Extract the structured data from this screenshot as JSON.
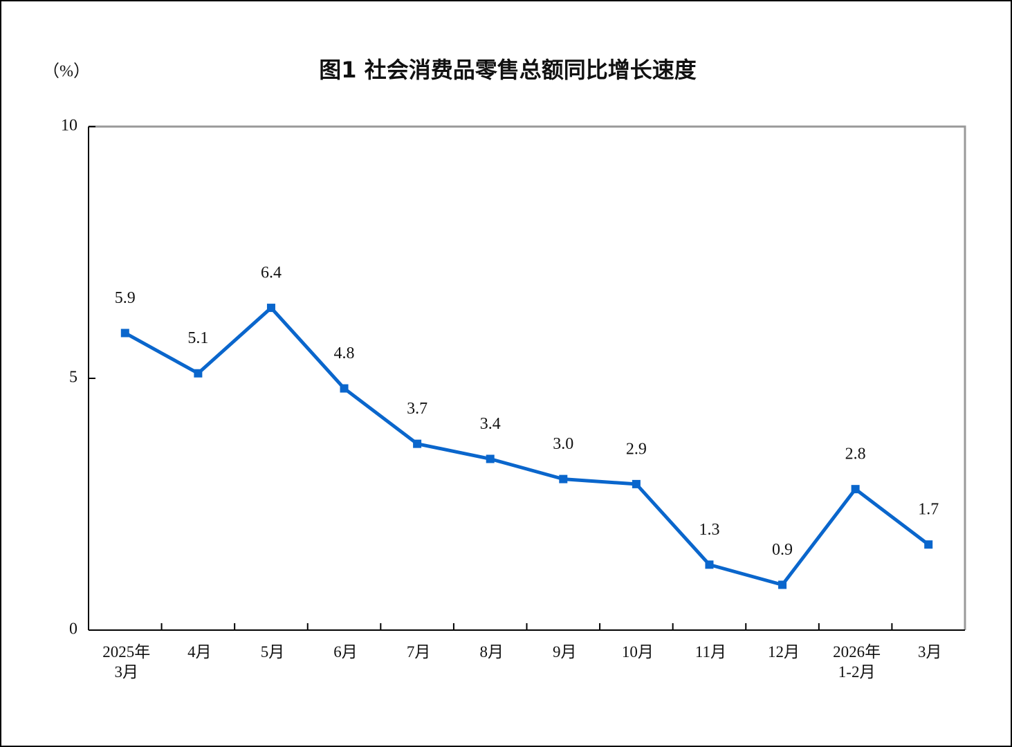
{
  "chart_data": {
    "type": "line",
    "title": "图1  社会消费品零售总额同比增长速度",
    "y_label": "（%）",
    "categories": [
      "2025年\n3月",
      "4月",
      "5月",
      "6月",
      "7月",
      "8月",
      "9月",
      "10月",
      "11月",
      "12月",
      "2026年\n1-2月",
      "3月"
    ],
    "series": [
      {
        "color": "#0a66cc",
        "values": [
          5.9,
          5.1,
          6.4,
          4.8,
          3.7,
          3.4,
          3.0,
          2.9,
          1.3,
          0.9,
          2.8,
          1.7
        ],
        "value_labels": [
          "5.9",
          "5.1",
          "6.4",
          "4.8",
          "3.7",
          "3.4",
          "3.0",
          "2.9",
          "1.3",
          "0.9",
          "2.8",
          "1.7"
        ]
      }
    ],
    "ylim": [
      0,
      10
    ],
    "yticks": [
      0,
      5,
      10
    ]
  }
}
